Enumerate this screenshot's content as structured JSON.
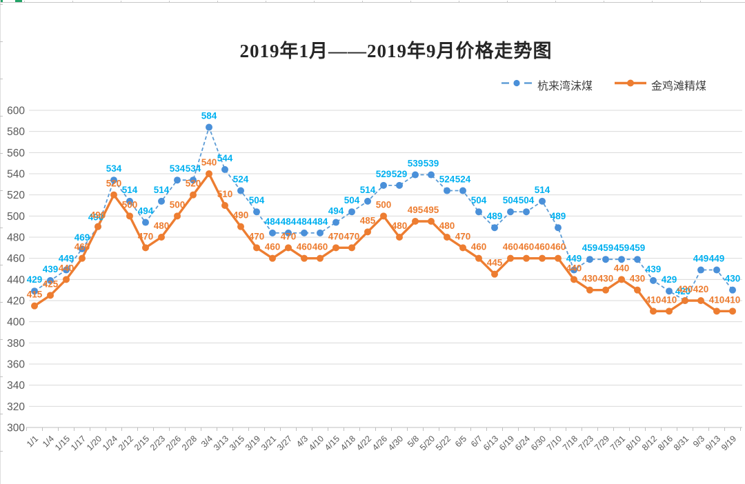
{
  "title": "2019年1月——2019年9月价格走势图",
  "legend": {
    "position": "top-right"
  },
  "colors": {
    "background": "#FFFFFF",
    "series1_line": "#5B9BD5",
    "series1_marker": "#4A90D9",
    "series1_label": "#00B0F0",
    "series2_line": "#ED7D31",
    "series2_marker": "#ED7D31",
    "series2_label": "#ED7D31",
    "grid": "#D9D9D9",
    "axis": "#BFBFBF",
    "axis_text": "#595959",
    "title_text": "#262626",
    "legend_text": "#3F3F3F",
    "sheet_edge": "#C6C6C6",
    "sheet_accent_green": "#21A366"
  },
  "chart_data": {
    "type": "line",
    "title": "2019年1月——2019年9月价格走势图",
    "xlabel": "",
    "ylabel": "",
    "ylim": [
      300,
      600
    ],
    "y_ticks": [
      600,
      580,
      560,
      540,
      520,
      500,
      480,
      460,
      440,
      420,
      400,
      380,
      360,
      340,
      320,
      300
    ],
    "grid": true,
    "legend_position": "top-right",
    "xlabel_rotation": 45,
    "categories": [
      "1/1",
      "1/4",
      "1/15",
      "1/17",
      "1/20",
      "1/24",
      "2/12",
      "2/15",
      "2/23",
      "2/26",
      "2/28",
      "3/4",
      "3/13",
      "3/15",
      "3/19",
      "3/21",
      "3/27",
      "4/3",
      "4/10",
      "4/15",
      "4/18",
      "4/22",
      "4/26",
      "4/30",
      "5/8",
      "5/20",
      "5/22",
      "6/5",
      "6/7",
      "6/13",
      "6/19",
      "6/24",
      "6/30",
      "7/10",
      "7/18",
      "7/23",
      "7/29",
      "7/31",
      "8/10",
      "8/12",
      "8/16",
      "8/31",
      "9/3",
      "9/13",
      "9/19"
    ],
    "series": [
      {
        "name": "杭来湾沫煤",
        "style": "dashed",
        "color": "#5B9BD5",
        "marker_color": "#4A90D9",
        "label_color": "#00B0F0",
        "values": [
          429,
          439,
          449,
          469,
          490,
          534,
          514,
          494,
          514,
          534,
          534,
          584,
          544,
          524,
          504,
          484,
          484,
          484,
          484,
          494,
          504,
          514,
          529,
          529,
          539,
          539,
          524,
          524,
          504,
          489,
          504,
          504,
          514,
          489,
          449,
          459,
          459,
          459,
          459,
          439,
          429,
          420,
          449,
          449,
          430
        ]
      },
      {
        "name": "金鸡滩精煤",
        "style": "solid",
        "color": "#ED7D31",
        "marker_color": "#ED7D31",
        "label_color": "#ED7D31",
        "values": [
          415,
          425,
          440,
          460,
          490,
          520,
          500,
          470,
          480,
          500,
          520,
          540,
          510,
          490,
          470,
          460,
          470,
          460,
          460,
          470,
          470,
          485,
          500,
          480,
          495,
          495,
          480,
          470,
          460,
          445,
          460,
          460,
          460,
          460,
          440,
          430,
          430,
          440,
          430,
          410,
          410,
          420,
          420,
          410,
          410
        ]
      }
    ]
  }
}
